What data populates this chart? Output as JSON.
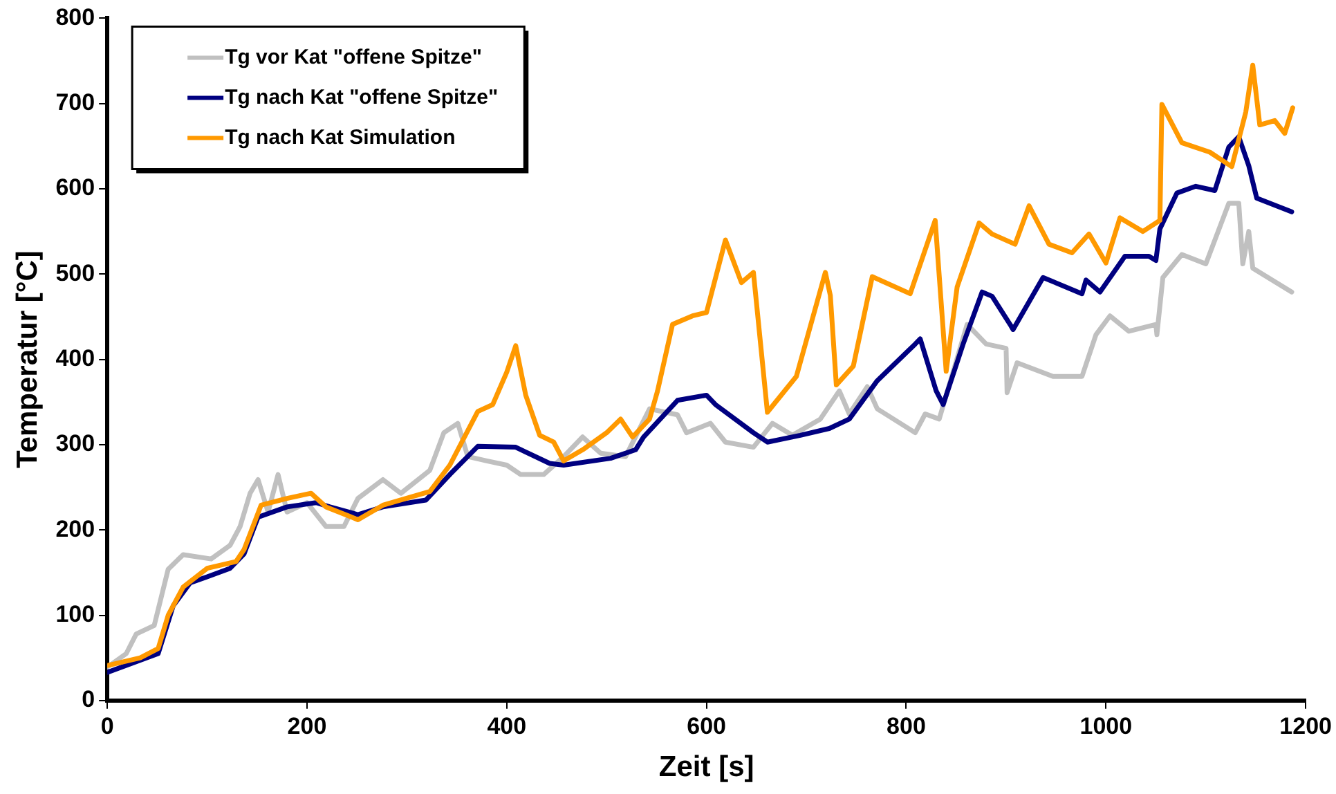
{
  "chart_data": {
    "type": "line",
    "xlabel": "Zeit [s]",
    "ylabel": "Temperatur [°C]",
    "xlim": [
      0,
      1200
    ],
    "xticks": [
      0,
      200,
      400,
      600,
      800,
      1000,
      1200
    ],
    "ylim": [
      0,
      800
    ],
    "yticks": [
      0,
      100,
      200,
      300,
      400,
      500,
      600,
      700,
      800
    ],
    "grid": false,
    "legend": "top left",
    "marker": "none",
    "line_style": "solid",
    "series": [
      {
        "name": "Tg vor Kat \"offene Spitze\"",
        "color": "#c0c0c0",
        "x": [
          0,
          19,
          29,
          47,
          61,
          76,
          104,
          123,
          133,
          143,
          151,
          161,
          171,
          180,
          200,
          219,
          237,
          251,
          276,
          294,
          323,
          337,
          351,
          361,
          380,
          400,
          414,
          437,
          457,
          476,
          494,
          519,
          543,
          571,
          580,
          604,
          619,
          647,
          666,
          686,
          714,
          733,
          743,
          761,
          771,
          809,
          819,
          833,
          861,
          880,
          900,
          901,
          911,
          947,
          976,
          990,
          1004,
          1023,
          1050,
          1051,
          1057,
          1076,
          1100,
          1123,
          1133,
          1137,
          1143,
          1147,
          1186
        ],
        "values": [
          39,
          55,
          78,
          88,
          154,
          171,
          166,
          182,
          204,
          243,
          259,
          221,
          265,
          221,
          232,
          204,
          204,
          237,
          259,
          243,
          270,
          314,
          325,
          286,
          281,
          276,
          265,
          265,
          286,
          309,
          290,
          286,
          342,
          335,
          314,
          325,
          303,
          297,
          325,
          311,
          330,
          363,
          336,
          368,
          342,
          314,
          336,
          330,
          441,
          418,
          413,
          361,
          396,
          380,
          380,
          429,
          451,
          433,
          441,
          429,
          496,
          523,
          512,
          583,
          583,
          512,
          550,
          507,
          479
        ]
      },
      {
        "name": "Tg nach Kat \"offene Spitze\"",
        "color": "#000080",
        "x": [
          0,
          51,
          66,
          83,
          100,
          123,
          137,
          151,
          180,
          209,
          223,
          251,
          276,
          319,
          343,
          371,
          409,
          443,
          457,
          504,
          529,
          537,
          571,
          600,
          609,
          647,
          661,
          694,
          723,
          743,
          771,
          809,
          814,
          830,
          837,
          857,
          876,
          886,
          904,
          907,
          937,
          976,
          980,
          994,
          1019,
          1043,
          1050,
          1054,
          1071,
          1090,
          1109,
          1123,
          1133,
          1143,
          1151,
          1186
        ],
        "values": [
          33,
          55,
          111,
          138,
          145,
          155,
          172,
          215,
          227,
          232,
          227,
          218,
          227,
          235,
          265,
          298,
          297,
          278,
          276,
          284,
          294,
          309,
          352,
          358,
          347,
          314,
          303,
          311,
          319,
          330,
          375,
          418,
          424,
          363,
          347,
          418,
          479,
          474,
          441,
          435,
          496,
          477,
          493,
          479,
          521,
          521,
          516,
          553,
          595,
          603,
          598,
          649,
          661,
          627,
          589,
          573
        ]
      },
      {
        "name": "Tg nach Kat Simulation",
        "color": "#ff9900",
        "x": [
          0,
          33,
          51,
          61,
          76,
          100,
          129,
          137,
          154,
          180,
          204,
          219,
          251,
          276,
          323,
          343,
          371,
          386,
          400,
          409,
          419,
          433,
          447,
          457,
          476,
          500,
          514,
          526,
          543,
          551,
          566,
          586,
          600,
          619,
          635,
          647,
          661,
          690,
          719,
          724,
          730,
          747,
          766,
          804,
          829,
          840,
          851,
          873,
          886,
          909,
          923,
          943,
          966,
          983,
          1000,
          1014,
          1037,
          1054,
          1056,
          1076,
          1104,
          1126,
          1140,
          1147,
          1154,
          1169,
          1179,
          1187
        ],
        "values": [
          41,
          50,
          61,
          100,
          133,
          155,
          163,
          177,
          229,
          237,
          243,
          227,
          212,
          229,
          245,
          276,
          339,
          347,
          385,
          416,
          358,
          311,
          303,
          281,
          294,
          314,
          330,
          309,
          330,
          363,
          441,
          451,
          455,
          540,
          490,
          502,
          338,
          380,
          502,
          475,
          370,
          392,
          497,
          477,
          563,
          386,
          485,
          560,
          547,
          535,
          580,
          535,
          525,
          547,
          513,
          566,
          550,
          563,
          699,
          654,
          643,
          626,
          690,
          745,
          675,
          680,
          665,
          695
        ]
      }
    ]
  }
}
